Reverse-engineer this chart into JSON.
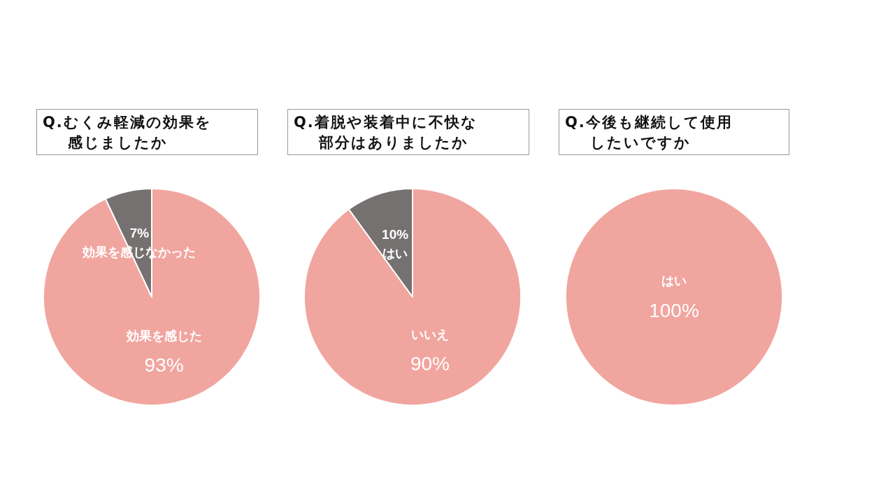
{
  "chart_data": [
    {
      "type": "pie",
      "title": "Q.むくみ軽減の効果を感じましたか",
      "categories": [
        "効果を感じた",
        "効果を感じなかった"
      ],
      "values": [
        93,
        7
      ],
      "colors": [
        "#f1a59f",
        "#767171"
      ],
      "value_labels": [
        "93%",
        "7%"
      ],
      "legend": false
    },
    {
      "type": "pie",
      "title": "Q.着脱や装着中に不快な部分はありましたか",
      "categories": [
        "いいえ",
        "はい"
      ],
      "values": [
        90,
        10
      ],
      "colors": [
        "#f1a59f",
        "#767171"
      ],
      "value_labels": [
        "90%",
        "10%"
      ],
      "legend": false
    },
    {
      "type": "pie",
      "title": "Q.今後も継続して使用したいですか",
      "categories": [
        "はい"
      ],
      "values": [
        100
      ],
      "colors": [
        "#f1a59f"
      ],
      "value_labels": [
        "100%"
      ],
      "legend": false
    }
  ]
}
